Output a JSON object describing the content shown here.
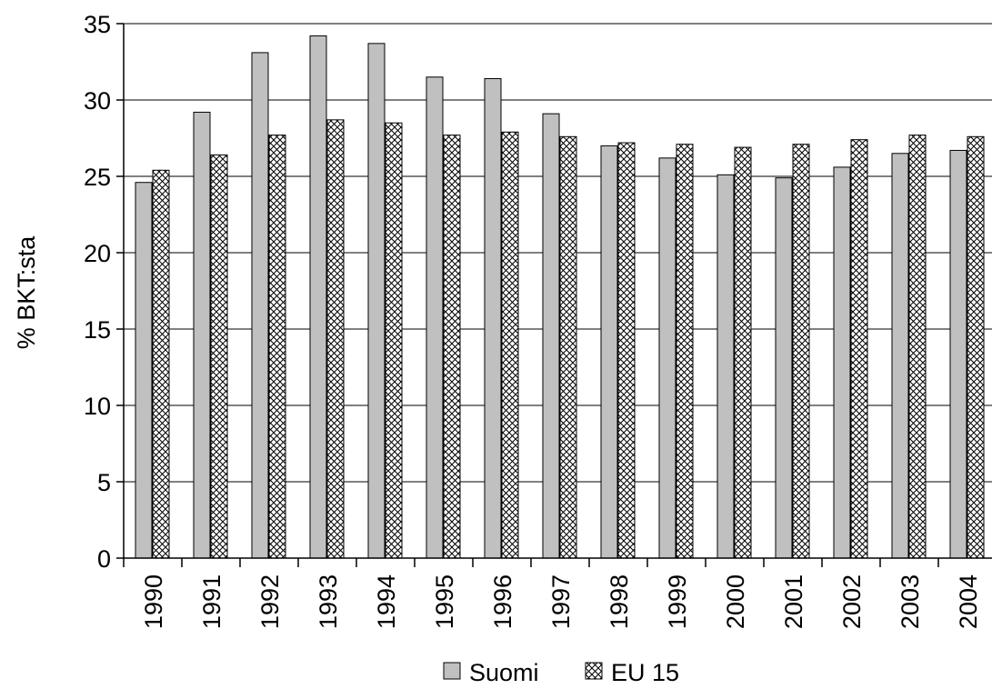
{
  "chart_data": {
    "type": "bar",
    "title": "",
    "xlabel": "",
    "ylabel": "% BKT:sta",
    "ylim": [
      0,
      35
    ],
    "yticks": [
      0,
      5,
      10,
      15,
      20,
      25,
      30,
      35
    ],
    "grid": true,
    "legend_position": "bottom",
    "categories": [
      "1990",
      "1991",
      "1992",
      "1993",
      "1994",
      "1995",
      "1996",
      "1997",
      "1998",
      "1999",
      "2000",
      "2001",
      "2002",
      "2003",
      "2004"
    ],
    "series": [
      {
        "name": "Suomi",
        "fill": "#c0c0c0",
        "pattern": "solid",
        "values": [
          24.6,
          29.2,
          33.1,
          34.2,
          33.7,
          31.5,
          31.4,
          29.1,
          27.0,
          26.2,
          25.1,
          24.9,
          25.6,
          26.5,
          26.7
        ]
      },
      {
        "name": "EU 15",
        "fill": "#ffffff",
        "pattern": "crosshatch",
        "values": [
          25.4,
          26.4,
          27.7,
          28.7,
          28.5,
          27.7,
          27.9,
          27.6,
          27.2,
          27.1,
          26.9,
          27.1,
          27.4,
          27.7,
          27.6
        ]
      }
    ]
  }
}
